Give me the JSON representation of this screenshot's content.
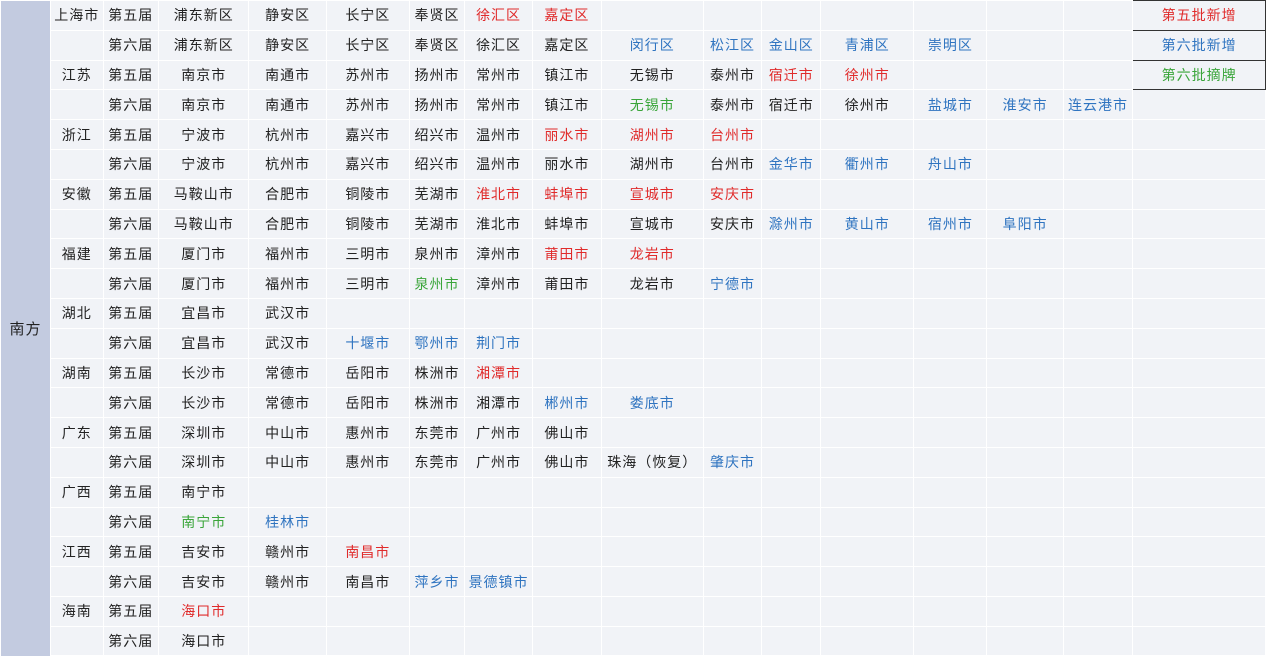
{
  "colors": {
    "fifth_new": "#e02b2b",
    "sixth_new": "#2f74c0",
    "sixth_removed": "#3aa53a"
  },
  "region": "南方",
  "legend": [
    "第五批新增",
    "第六批新增",
    "第六批摘牌"
  ],
  "rows": [
    {
      "province": "上海市",
      "batch": "第五届",
      "cities": [
        {
          "name": "浦东新区",
          "s": ""
        },
        {
          "name": "静安区",
          "s": ""
        },
        {
          "name": "长宁区",
          "s": ""
        },
        {
          "name": "奉贤区",
          "s": ""
        },
        {
          "name": "徐汇区",
          "s": "red"
        },
        {
          "name": "嘉定区",
          "s": "red"
        }
      ]
    },
    {
      "province": "",
      "batch": "第六届",
      "cities": [
        {
          "name": "浦东新区",
          "s": ""
        },
        {
          "name": "静安区",
          "s": ""
        },
        {
          "name": "长宁区",
          "s": ""
        },
        {
          "name": "奉贤区",
          "s": ""
        },
        {
          "name": "徐汇区",
          "s": ""
        },
        {
          "name": "嘉定区",
          "s": ""
        },
        {
          "name": "闵行区",
          "s": "blue"
        },
        {
          "name": "松江区",
          "s": "blue"
        },
        {
          "name": "金山区",
          "s": "blue"
        },
        {
          "name": "青浦区",
          "s": "blue"
        },
        {
          "name": "崇明区",
          "s": "blue"
        }
      ]
    },
    {
      "province": "江苏",
      "batch": "第五届",
      "cities": [
        {
          "name": "南京市",
          "s": ""
        },
        {
          "name": "南通市",
          "s": ""
        },
        {
          "name": "苏州市",
          "s": ""
        },
        {
          "name": "扬州市",
          "s": ""
        },
        {
          "name": "常州市",
          "s": ""
        },
        {
          "name": "镇江市",
          "s": ""
        },
        {
          "name": "无锡市",
          "s": ""
        },
        {
          "name": "泰州市",
          "s": ""
        },
        {
          "name": "宿迁市",
          "s": "red"
        },
        {
          "name": "徐州市",
          "s": "red"
        }
      ]
    },
    {
      "province": "",
      "batch": "第六届",
      "cities": [
        {
          "name": "南京市",
          "s": ""
        },
        {
          "name": "南通市",
          "s": ""
        },
        {
          "name": "苏州市",
          "s": ""
        },
        {
          "name": "扬州市",
          "s": ""
        },
        {
          "name": "常州市",
          "s": ""
        },
        {
          "name": "镇江市",
          "s": ""
        },
        {
          "name": "无锡市",
          "s": "green"
        },
        {
          "name": "泰州市",
          "s": ""
        },
        {
          "name": "宿迁市",
          "s": ""
        },
        {
          "name": "徐州市",
          "s": ""
        },
        {
          "name": "盐城市",
          "s": "blue"
        },
        {
          "name": "淮安市",
          "s": "blue"
        },
        {
          "name": "连云港市",
          "s": "blue"
        }
      ]
    },
    {
      "province": "浙江",
      "batch": "第五届",
      "cities": [
        {
          "name": "宁波市",
          "s": ""
        },
        {
          "name": "杭州市",
          "s": ""
        },
        {
          "name": "嘉兴市",
          "s": ""
        },
        {
          "name": "绍兴市",
          "s": ""
        },
        {
          "name": "温州市",
          "s": ""
        },
        {
          "name": "丽水市",
          "s": "red"
        },
        {
          "name": "湖州市",
          "s": "red"
        },
        {
          "name": "台州市",
          "s": "red"
        }
      ]
    },
    {
      "province": "",
      "batch": "第六届",
      "cities": [
        {
          "name": "宁波市",
          "s": ""
        },
        {
          "name": "杭州市",
          "s": ""
        },
        {
          "name": "嘉兴市",
          "s": ""
        },
        {
          "name": "绍兴市",
          "s": ""
        },
        {
          "name": "温州市",
          "s": ""
        },
        {
          "name": "丽水市",
          "s": ""
        },
        {
          "name": "湖州市",
          "s": ""
        },
        {
          "name": "台州市",
          "s": ""
        },
        {
          "name": "金华市",
          "s": "blue"
        },
        {
          "name": "衢州市",
          "s": "blue"
        },
        {
          "name": "舟山市",
          "s": "blue"
        }
      ]
    },
    {
      "province": "安徽",
      "batch": "第五届",
      "cities": [
        {
          "name": "马鞍山市",
          "s": ""
        },
        {
          "name": "合肥市",
          "s": ""
        },
        {
          "name": "铜陵市",
          "s": ""
        },
        {
          "name": "芜湖市",
          "s": ""
        },
        {
          "name": "淮北市",
          "s": "red"
        },
        {
          "name": "蚌埠市",
          "s": "red"
        },
        {
          "name": "宣城市",
          "s": "red"
        },
        {
          "name": "安庆市",
          "s": "red"
        }
      ]
    },
    {
      "province": "",
      "batch": "第六届",
      "cities": [
        {
          "name": "马鞍山市",
          "s": ""
        },
        {
          "name": "合肥市",
          "s": ""
        },
        {
          "name": "铜陵市",
          "s": ""
        },
        {
          "name": "芜湖市",
          "s": ""
        },
        {
          "name": "淮北市",
          "s": ""
        },
        {
          "name": "蚌埠市",
          "s": ""
        },
        {
          "name": "宣城市",
          "s": ""
        },
        {
          "name": "安庆市",
          "s": ""
        },
        {
          "name": "滁州市",
          "s": "blue"
        },
        {
          "name": "黄山市",
          "s": "blue"
        },
        {
          "name": "宿州市",
          "s": "blue"
        },
        {
          "name": "阜阳市",
          "s": "blue"
        }
      ]
    },
    {
      "province": "福建",
      "batch": "第五届",
      "cities": [
        {
          "name": "厦门市",
          "s": ""
        },
        {
          "name": "福州市",
          "s": ""
        },
        {
          "name": "三明市",
          "s": ""
        },
        {
          "name": "泉州市",
          "s": ""
        },
        {
          "name": "漳州市",
          "s": ""
        },
        {
          "name": "莆田市",
          "s": "red"
        },
        {
          "name": "龙岩市",
          "s": "red"
        }
      ]
    },
    {
      "province": "",
      "batch": "第六届",
      "cities": [
        {
          "name": "厦门市",
          "s": ""
        },
        {
          "name": "福州市",
          "s": ""
        },
        {
          "name": "三明市",
          "s": ""
        },
        {
          "name": "泉州市",
          "s": "green"
        },
        {
          "name": "漳州市",
          "s": ""
        },
        {
          "name": "莆田市",
          "s": ""
        },
        {
          "name": "龙岩市",
          "s": ""
        },
        {
          "name": "宁德市",
          "s": "blue"
        }
      ]
    },
    {
      "province": "湖北",
      "batch": "第五届",
      "cities": [
        {
          "name": "宜昌市",
          "s": ""
        },
        {
          "name": "武汉市",
          "s": ""
        }
      ]
    },
    {
      "province": "",
      "batch": "第六届",
      "cities": [
        {
          "name": "宜昌市",
          "s": ""
        },
        {
          "name": "武汉市",
          "s": ""
        },
        {
          "name": "十堰市",
          "s": "blue"
        },
        {
          "name": "鄂州市",
          "s": "blue"
        },
        {
          "name": "荆门市",
          "s": "blue"
        }
      ]
    },
    {
      "province": "湖南",
      "batch": "第五届",
      "cities": [
        {
          "name": "长沙市",
          "s": ""
        },
        {
          "name": "常德市",
          "s": ""
        },
        {
          "name": "岳阳市",
          "s": ""
        },
        {
          "name": "株洲市",
          "s": ""
        },
        {
          "name": "湘潭市",
          "s": "red"
        }
      ]
    },
    {
      "province": "",
      "batch": "第六届",
      "cities": [
        {
          "name": "长沙市",
          "s": ""
        },
        {
          "name": "常德市",
          "s": ""
        },
        {
          "name": "岳阳市",
          "s": ""
        },
        {
          "name": "株洲市",
          "s": ""
        },
        {
          "name": "湘潭市",
          "s": ""
        },
        {
          "name": "郴州市",
          "s": "blue"
        },
        {
          "name": "娄底市",
          "s": "blue"
        }
      ]
    },
    {
      "province": "广东",
      "batch": "第五届",
      "cities": [
        {
          "name": "深圳市",
          "s": ""
        },
        {
          "name": "中山市",
          "s": ""
        },
        {
          "name": "惠州市",
          "s": ""
        },
        {
          "name": "东莞市",
          "s": ""
        },
        {
          "name": "广州市",
          "s": ""
        },
        {
          "name": "佛山市",
          "s": ""
        }
      ]
    },
    {
      "province": "",
      "batch": "第六届",
      "cities": [
        {
          "name": "深圳市",
          "s": ""
        },
        {
          "name": "中山市",
          "s": ""
        },
        {
          "name": "惠州市",
          "s": ""
        },
        {
          "name": "东莞市",
          "s": ""
        },
        {
          "name": "广州市",
          "s": ""
        },
        {
          "name": "佛山市",
          "s": ""
        },
        {
          "name": "珠海（恢复）",
          "s": ""
        },
        {
          "name": "肇庆市",
          "s": "blue"
        }
      ]
    },
    {
      "province": "广西",
      "batch": "第五届",
      "cities": [
        {
          "name": "南宁市",
          "s": ""
        }
      ]
    },
    {
      "province": "",
      "batch": "第六届",
      "cities": [
        {
          "name": "南宁市",
          "s": "green"
        },
        {
          "name": "桂林市",
          "s": "blue"
        }
      ]
    },
    {
      "province": "江西",
      "batch": "第五届",
      "cities": [
        {
          "name": "吉安市",
          "s": ""
        },
        {
          "name": "赣州市",
          "s": ""
        },
        {
          "name": "南昌市",
          "s": "red"
        }
      ]
    },
    {
      "province": "",
      "batch": "第六届",
      "cities": [
        {
          "name": "吉安市",
          "s": ""
        },
        {
          "name": "赣州市",
          "s": ""
        },
        {
          "name": "南昌市",
          "s": ""
        },
        {
          "name": "萍乡市",
          "s": "blue"
        },
        {
          "name": "景德镇市",
          "s": "blue"
        }
      ]
    },
    {
      "province": "海南",
      "batch": "第五届",
      "cities": [
        {
          "name": "海口市",
          "s": "red"
        }
      ]
    },
    {
      "province": "",
      "batch": "第六届",
      "cities": [
        {
          "name": "海口市",
          "s": ""
        }
      ]
    }
  ]
}
